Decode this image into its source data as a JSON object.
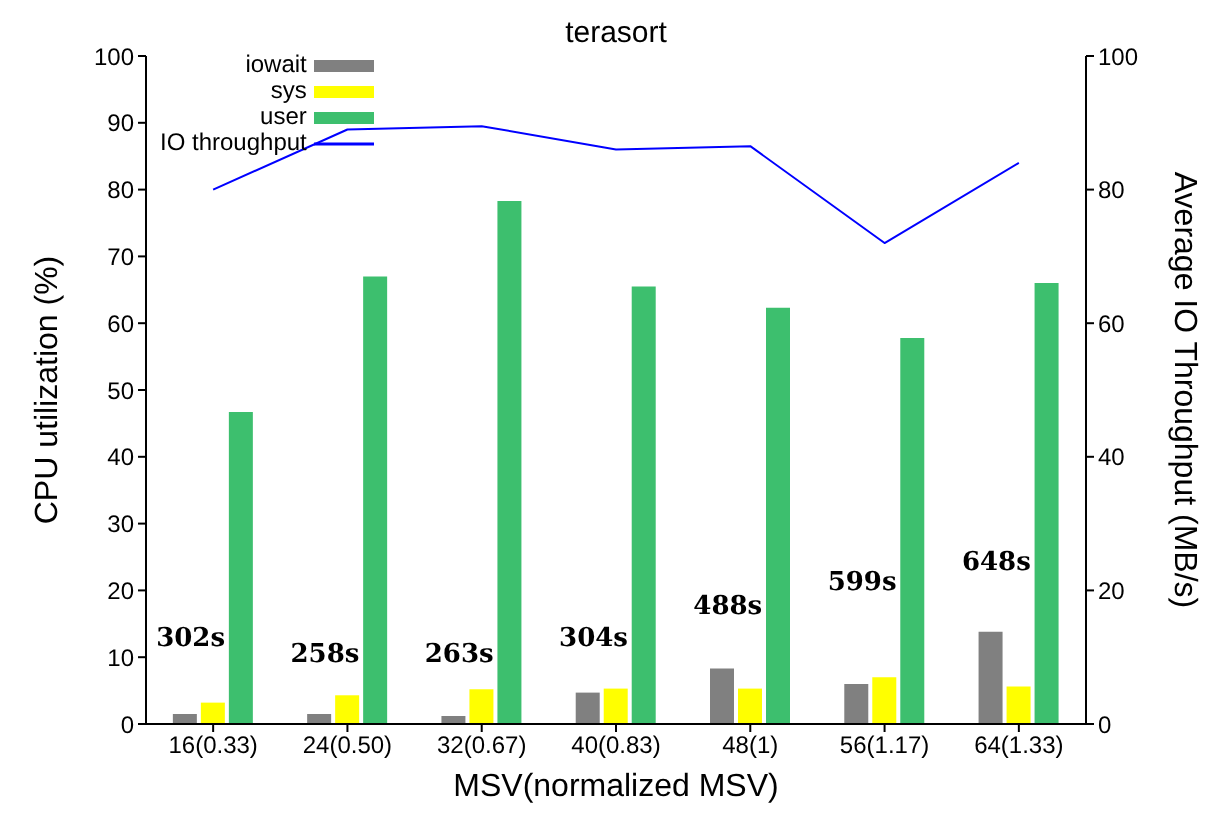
{
  "chart_data": {
    "type": "bar",
    "title": "terasort",
    "xlabel": "MSV(normalized MSV)",
    "ylabel": "CPU utilization (%)",
    "y2label": "Average IO Throughput (MB/s)",
    "categories": [
      "16(0.33)",
      "24(0.50)",
      "32(0.67)",
      "40(0.83)",
      "48(1)",
      "56(1.17)",
      "64(1.33)"
    ],
    "series": [
      {
        "name": "iowait",
        "color": "#808080",
        "values": [
          1.5,
          1.5,
          1.2,
          4.7,
          8.3,
          6,
          13.8
        ]
      },
      {
        "name": "sys",
        "color": "#ffff00",
        "values": [
          3.2,
          4.3,
          5.2,
          5.3,
          5.3,
          7,
          5.6
        ]
      },
      {
        "name": "user",
        "color": "#3dbf6e",
        "values": [
          46.7,
          67,
          78.3,
          65.5,
          62.3,
          57.8,
          66
        ]
      },
      {
        "name": "IO throughput",
        "type": "line",
        "color": "#0000ff",
        "values": [
          80,
          89,
          89.5,
          86,
          86.5,
          72,
          84
        ]
      }
    ],
    "ylim": [
      0,
      100
    ],
    "yticks": [
      0,
      10,
      20,
      30,
      40,
      50,
      60,
      70,
      80,
      90,
      100
    ],
    "y2lim": [
      0,
      100
    ],
    "y2ticks": [
      0,
      20,
      40,
      60,
      80,
      100
    ],
    "legend": "top left",
    "grid": false,
    "marker": "none",
    "annotations": [
      "302s",
      "258s",
      "263s",
      "304s",
      "488s",
      "599s",
      "648s"
    ]
  }
}
